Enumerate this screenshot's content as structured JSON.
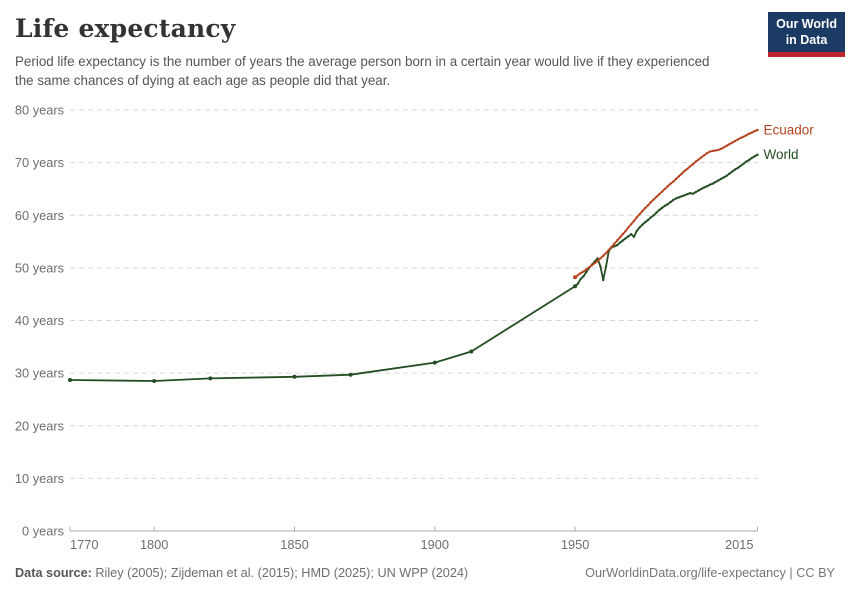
{
  "header": {
    "title": "Life expectancy",
    "subtitle": "Period life expectancy is the number of years the average person born in a certain year would live if they experienced the same chances of dying at each age as people did that year.",
    "logo": {
      "line1": "Our World",
      "line2": "in Data"
    }
  },
  "footer": {
    "source_label": "Data source:",
    "source_text": " Riley (2005); Zijdeman et al. (2015); HMD (2025); UN WPP (2024)",
    "link": "OurWorldinData.org/life-expectancy",
    "divider": " | ",
    "license": "CC BY"
  },
  "colors": {
    "ecuador": "#B5431E",
    "world": "#234D23",
    "grid": "#D6D6D6",
    "axis": "#A8A8A8",
    "tick_label": "#6E6E6E",
    "logo_bg": "#1B3A64",
    "logo_bar": "#C0272D"
  },
  "chart_data": {
    "type": "line",
    "title": "Life expectancy",
    "xlabel": "",
    "ylabel": "",
    "unit": "years",
    "x_domain": [
      1770,
      2015
    ],
    "y_domain": [
      0,
      80
    ],
    "yticks": [
      0,
      10,
      20,
      30,
      40,
      50,
      60,
      70,
      80
    ],
    "ytick_suffix": " years",
    "xticks": [
      1770,
      1800,
      1850,
      1900,
      1950,
      2015
    ],
    "grid": "horizontal-dashed",
    "legend_position": "end-of-line-labels",
    "series": [
      {
        "name": "Ecuador",
        "color": "#B5431E",
        "points": [
          [
            1950,
            48.2
          ],
          [
            1951,
            48.6
          ],
          [
            1952,
            49.0
          ],
          [
            1953,
            49.3
          ],
          [
            1954,
            49.7
          ],
          [
            1955,
            50.1
          ],
          [
            1956,
            50.5
          ],
          [
            1957,
            50.9
          ],
          [
            1958,
            51.3
          ],
          [
            1959,
            51.8
          ],
          [
            1960,
            52.3
          ],
          [
            1961,
            52.8
          ],
          [
            1962,
            53.4
          ],
          [
            1963,
            54.0
          ],
          [
            1964,
            54.6
          ],
          [
            1965,
            55.2
          ],
          [
            1966,
            55.8
          ],
          [
            1967,
            56.4
          ],
          [
            1968,
            57.0
          ],
          [
            1969,
            57.7
          ],
          [
            1970,
            58.3
          ],
          [
            1971,
            58.9
          ],
          [
            1972,
            59.6
          ],
          [
            1973,
            60.2
          ],
          [
            1974,
            60.8
          ],
          [
            1975,
            61.4
          ],
          [
            1976,
            61.9
          ],
          [
            1977,
            62.5
          ],
          [
            1978,
            63.0
          ],
          [
            1979,
            63.5
          ],
          [
            1980,
            64.0
          ],
          [
            1981,
            64.5
          ],
          [
            1982,
            65.0
          ],
          [
            1983,
            65.5
          ],
          [
            1984,
            66.0
          ],
          [
            1985,
            66.4
          ],
          [
            1986,
            66.9
          ],
          [
            1987,
            67.4
          ],
          [
            1988,
            67.9
          ],
          [
            1989,
            68.4
          ],
          [
            1990,
            68.8
          ],
          [
            1991,
            69.3
          ],
          [
            1992,
            69.7
          ],
          [
            1993,
            70.2
          ],
          [
            1994,
            70.6
          ],
          [
            1995,
            71.0
          ],
          [
            1996,
            71.4
          ],
          [
            1997,
            71.8
          ],
          [
            1998,
            72.1
          ],
          [
            1999,
            72.2
          ],
          [
            2000,
            72.3
          ],
          [
            2001,
            72.4
          ],
          [
            2002,
            72.6
          ],
          [
            2003,
            72.9
          ],
          [
            2004,
            73.2
          ],
          [
            2005,
            73.5
          ],
          [
            2006,
            73.8
          ],
          [
            2007,
            74.1
          ],
          [
            2008,
            74.4
          ],
          [
            2009,
            74.7
          ],
          [
            2010,
            74.9
          ],
          [
            2011,
            75.2
          ],
          [
            2012,
            75.5
          ],
          [
            2013,
            75.7
          ],
          [
            2014,
            76.0
          ],
          [
            2015,
            76.2
          ]
        ]
      },
      {
        "name": "World",
        "color": "#234D23",
        "points": [
          [
            1770,
            28.7
          ],
          [
            1800,
            28.5
          ],
          [
            1820,
            29.0
          ],
          [
            1850,
            29.3
          ],
          [
            1870,
            29.7
          ],
          [
            1900,
            32.0
          ],
          [
            1913,
            34.1
          ],
          [
            1950,
            46.5
          ],
          [
            1951,
            47.0
          ],
          [
            1952,
            47.9
          ],
          [
            1953,
            48.4
          ],
          [
            1954,
            49.2
          ],
          [
            1955,
            50.0
          ],
          [
            1956,
            50.6
          ],
          [
            1957,
            51.2
          ],
          [
            1958,
            51.8
          ],
          [
            1959,
            50.3
          ],
          [
            1960,
            47.7
          ],
          [
            1961,
            50.2
          ],
          [
            1962,
            53.2
          ],
          [
            1963,
            53.9
          ],
          [
            1964,
            54.1
          ],
          [
            1965,
            54.3
          ],
          [
            1966,
            54.8
          ],
          [
            1967,
            55.2
          ],
          [
            1968,
            55.6
          ],
          [
            1969,
            56.0
          ],
          [
            1970,
            56.4
          ],
          [
            1971,
            55.9
          ],
          [
            1972,
            57.0
          ],
          [
            1973,
            57.7
          ],
          [
            1974,
            58.2
          ],
          [
            1975,
            58.7
          ],
          [
            1976,
            59.1
          ],
          [
            1977,
            59.6
          ],
          [
            1978,
            60.0
          ],
          [
            1979,
            60.5
          ],
          [
            1980,
            61.0
          ],
          [
            1981,
            61.4
          ],
          [
            1982,
            61.8
          ],
          [
            1983,
            62.1
          ],
          [
            1984,
            62.5
          ],
          [
            1985,
            62.9
          ],
          [
            1986,
            63.2
          ],
          [
            1987,
            63.4
          ],
          [
            1988,
            63.6
          ],
          [
            1989,
            63.8
          ],
          [
            1990,
            64.0
          ],
          [
            1991,
            64.2
          ],
          [
            1992,
            64.1
          ],
          [
            1993,
            64.4
          ],
          [
            1994,
            64.7
          ],
          [
            1995,
            65.0
          ],
          [
            1996,
            65.3
          ],
          [
            1997,
            65.5
          ],
          [
            1998,
            65.8
          ],
          [
            1999,
            66.0
          ],
          [
            2000,
            66.3
          ],
          [
            2001,
            66.6
          ],
          [
            2002,
            66.9
          ],
          [
            2003,
            67.2
          ],
          [
            2004,
            67.5
          ],
          [
            2005,
            67.9
          ],
          [
            2006,
            68.3
          ],
          [
            2007,
            68.7
          ],
          [
            2008,
            69.0
          ],
          [
            2009,
            69.4
          ],
          [
            2010,
            69.8
          ],
          [
            2011,
            70.2
          ],
          [
            2012,
            70.5
          ],
          [
            2013,
            70.9
          ],
          [
            2014,
            71.2
          ],
          [
            2015,
            71.5
          ]
        ]
      }
    ]
  }
}
